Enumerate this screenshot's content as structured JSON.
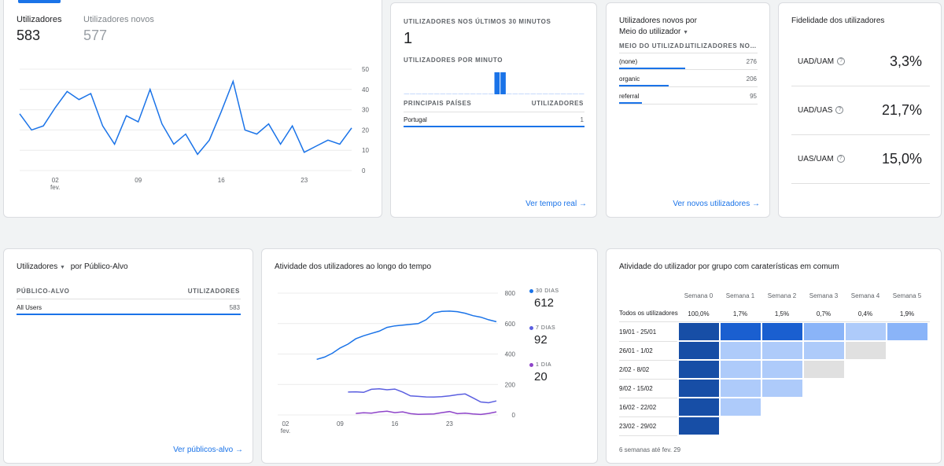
{
  "users_card": {
    "tabs": [
      {
        "label": "Utilizadores",
        "value": "583"
      },
      {
        "label": "Utilizadores novos",
        "value": "577"
      }
    ],
    "y_ticks": [
      "50",
      "40",
      "30",
      "20",
      "10",
      "0"
    ],
    "x_ticks": [
      {
        "label": "02",
        "sub": "fev."
      },
      {
        "label": "09",
        "sub": ""
      },
      {
        "label": "16",
        "sub": ""
      },
      {
        "label": "23",
        "sub": ""
      }
    ]
  },
  "realtime_card": {
    "title": "UTILIZADORES NOS ÚLTIMOS 30 MINUTOS",
    "value": "1",
    "per_minute_label": "UTILIZADORES POR MINUTO",
    "col_country": "PRINCIPAIS PAÍSES",
    "col_users": "UTILIZADORES",
    "rows": [
      {
        "name": "Portugal",
        "value": "1"
      }
    ],
    "link": "Ver tempo real"
  },
  "new_users_card": {
    "title_line1": "Utilizadores novos por",
    "title_line2": "Meio do utilizador",
    "col_dim": "MEIO DO UTILIZAD…",
    "col_users": "UTILIZADORES NO…",
    "rows": [
      {
        "name": "(none)",
        "value": "276",
        "fraction": 1.0
      },
      {
        "name": "organic",
        "value": "206",
        "fraction": 0.746
      },
      {
        "name": "referral",
        "value": "95",
        "fraction": 0.344
      }
    ],
    "link": "Ver novos utilizadores"
  },
  "loyalty_card": {
    "title": "Fidelidade dos utilizadores",
    "rows": [
      {
        "label": "UAD/UAM",
        "value": "3,3%"
      },
      {
        "label": "UAD/UAS",
        "value": "21,7%"
      },
      {
        "label": "UAS/UAM",
        "value": "15,0%"
      }
    ]
  },
  "audience_card": {
    "title_metric": "Utilizadores",
    "title_dim": "por Público-Alvo",
    "col_dim": "PÚBLICO-ALVO",
    "col_users": "UTILIZADORES",
    "rows": [
      {
        "name": "All Users",
        "value": "583"
      }
    ],
    "link": "Ver públicos-alvo"
  },
  "activity_card": {
    "title": "Atividade dos utilizadores ao longo do tempo",
    "y_ticks": [
      "800",
      "600",
      "400",
      "200",
      "0"
    ],
    "x_ticks": [
      {
        "label": "02",
        "sub": "fev."
      },
      {
        "label": "09",
        "sub": ""
      },
      {
        "label": "16",
        "sub": ""
      },
      {
        "label": "23",
        "sub": ""
      }
    ],
    "legend": [
      {
        "label": "30 DIAS",
        "value": "612",
        "color": "#1a73e8"
      },
      {
        "label": "7 DIAS",
        "value": "92",
        "color": "#5b5fe0"
      },
      {
        "label": "1 DIA",
        "value": "20",
        "color": "#8e44c9"
      }
    ]
  },
  "cohort_card": {
    "title": "Atividade do utilizador por grupo com caraterísticas em comum",
    "weeks": [
      "Semana 0",
      "Semana 1",
      "Semana 2",
      "Semana 3",
      "Semana 4",
      "Semana 5"
    ],
    "all_label": "Todos os utilizadores",
    "all_values": [
      "100,0%",
      "1,7%",
      "1,5%",
      "0,7%",
      "0,4%",
      "1,9%"
    ],
    "rows": [
      "19/01 - 25/01",
      "26/01 - 1/02",
      "2/02 - 8/02",
      "9/02 - 15/02",
      "16/02 - 22/02",
      "23/02 - 29/02"
    ],
    "footer": "6 semanas até fev. 29"
  },
  "chart_data": [
    {
      "type": "line",
      "series": [
        {
          "values": [
            28,
            20,
            22,
            31,
            39,
            35,
            38,
            22,
            13,
            27,
            24,
            40,
            23,
            13,
            18,
            8,
            15,
            29,
            44,
            20,
            18,
            23,
            13,
            22,
            9,
            12,
            15,
            13,
            21
          ]
        }
      ],
      "ylim": [
        0,
        50
      ]
    },
    {
      "type": "bar",
      "values": [
        0,
        0,
        0,
        0,
        0,
        0,
        0,
        0,
        0,
        0,
        0,
        0,
        0,
        0,
        0,
        1,
        1,
        0,
        0,
        0,
        0,
        0,
        0,
        0,
        0,
        0,
        0,
        0,
        0,
        0
      ],
      "ylim": [
        0,
        1
      ]
    },
    {
      "type": "line",
      "series": [
        {
          "name": "30 DIAS",
          "values": [
            365,
            380,
            405,
            440,
            465,
            500,
            520,
            535,
            550,
            575,
            585,
            590,
            595,
            600,
            625,
            670,
            680,
            682,
            678,
            668,
            652,
            642,
            625,
            612
          ]
        },
        {
          "name": "7 DIAS",
          "values": [
            150,
            152,
            148,
            168,
            172,
            165,
            170,
            150,
            125,
            122,
            118,
            117,
            120,
            125,
            133,
            138,
            112,
            85,
            80,
            92
          ]
        },
        {
          "name": "1 DIA",
          "values": [
            10,
            14,
            12,
            20,
            24,
            15,
            20,
            8,
            4,
            5,
            6,
            15,
            22,
            8,
            12,
            6,
            3,
            10,
            20
          ]
        }
      ],
      "ylim": [
        0,
        800
      ]
    }
  ]
}
